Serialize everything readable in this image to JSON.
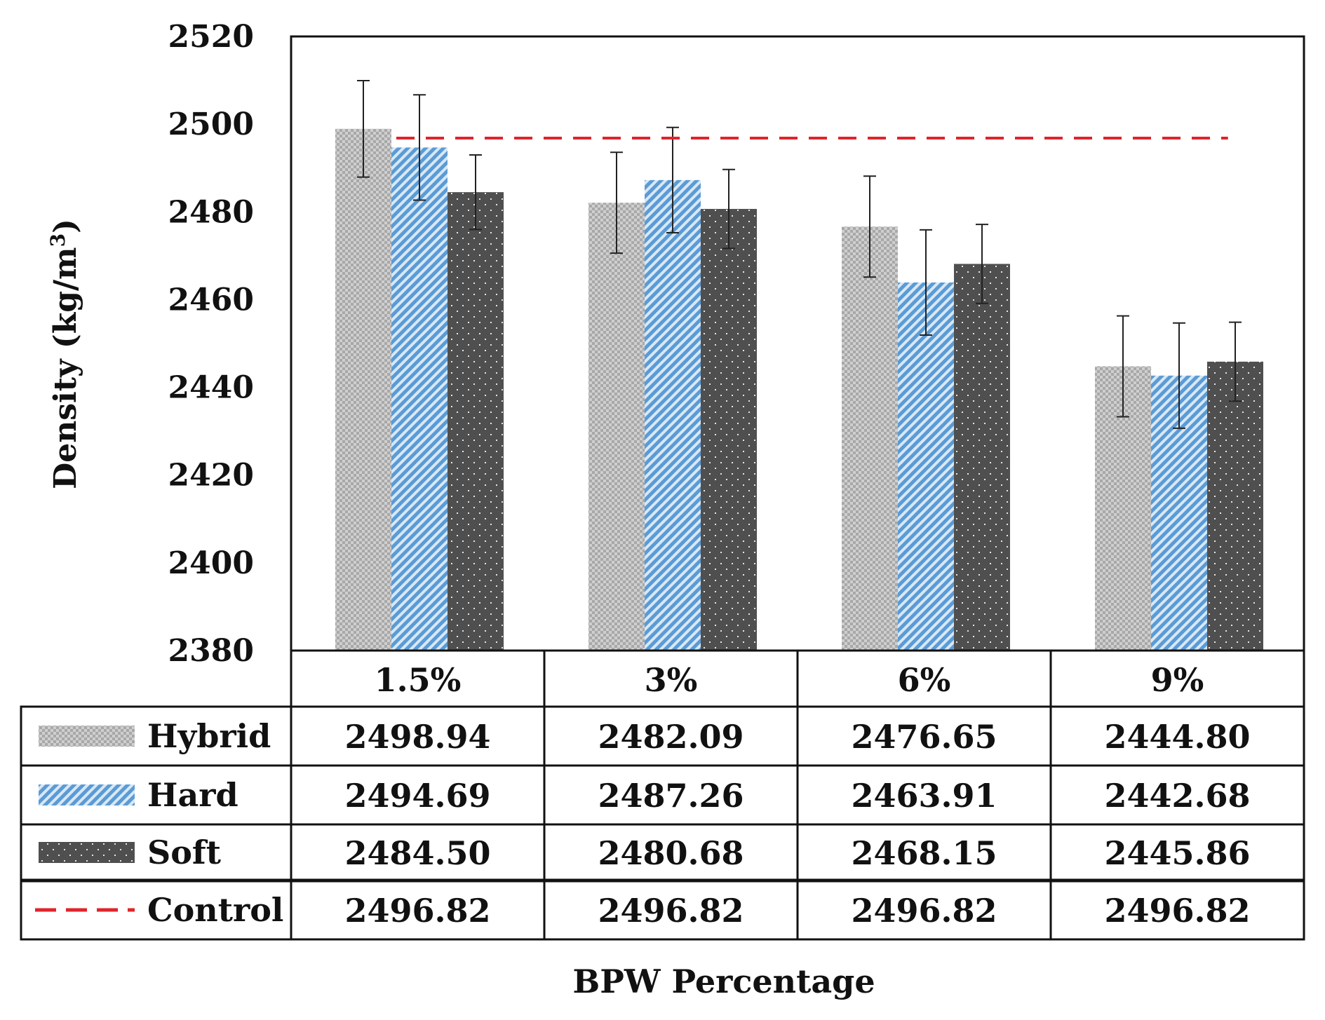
{
  "chart_data": {
    "type": "bar",
    "ylabel": "Density (kg/m",
    "ylabel_sup": "3",
    "ylabel_close": ")",
    "xlabel": "BPW Percentage",
    "ylim": [
      2380,
      2520
    ],
    "yticks": [
      2380,
      2400,
      2420,
      2440,
      2460,
      2480,
      2500,
      2520
    ],
    "grid": false,
    "categories": [
      "1.5%",
      "3%",
      "6%",
      "9%"
    ],
    "series": [
      {
        "name": "Hybrid",
        "values": [
          2498.94,
          2482.09,
          2476.65,
          2444.8
        ],
        "labels": [
          "2498.94",
          "2482.09",
          "2476.65",
          "2444.80"
        ],
        "errors": [
          11,
          11.5,
          11.5,
          11.5
        ],
        "color": "#a6a6a6",
        "pattern": "checker"
      },
      {
        "name": "Hard",
        "values": [
          2494.69,
          2487.26,
          2463.91,
          2442.68
        ],
        "labels": [
          "2494.69",
          "2487.26",
          "2463.91",
          "2442.68"
        ],
        "errors": [
          12,
          12,
          12,
          12
        ],
        "color": "#5b9bd5",
        "pattern": "diagonal"
      },
      {
        "name": "Soft",
        "values": [
          2484.5,
          2480.68,
          2468.15,
          2445.86
        ],
        "labels": [
          "2484.50",
          "2480.68",
          "2468.15",
          "2445.86"
        ],
        "errors": [
          8.5,
          9,
          9,
          9
        ],
        "color": "#505050",
        "pattern": "dots"
      }
    ],
    "reference_line": {
      "name": "Control",
      "value": 2496.82,
      "labels": [
        "2496.82",
        "2496.82",
        "2496.82",
        "2496.82"
      ],
      "color": "#e0242b",
      "style": "dashed"
    }
  }
}
